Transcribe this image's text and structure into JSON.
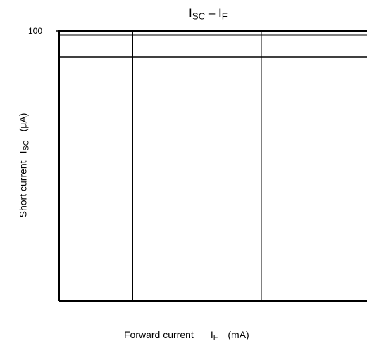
{
  "chart_data": {
    "type": "line",
    "title": {
      "main": "I",
      "sub": "SC",
      "sep": " – I",
      "sub2": "F"
    },
    "xlabel": {
      "text": "Forward current",
      "symbol": "I",
      "sub": "F",
      "unit": "(mA)"
    },
    "ylabel": {
      "text": "Short current",
      "symbol": "I",
      "sub": "SC",
      "unit": "(μA)"
    },
    "y_ticks": [
      "100"
    ],
    "series": [],
    "grid": true
  }
}
